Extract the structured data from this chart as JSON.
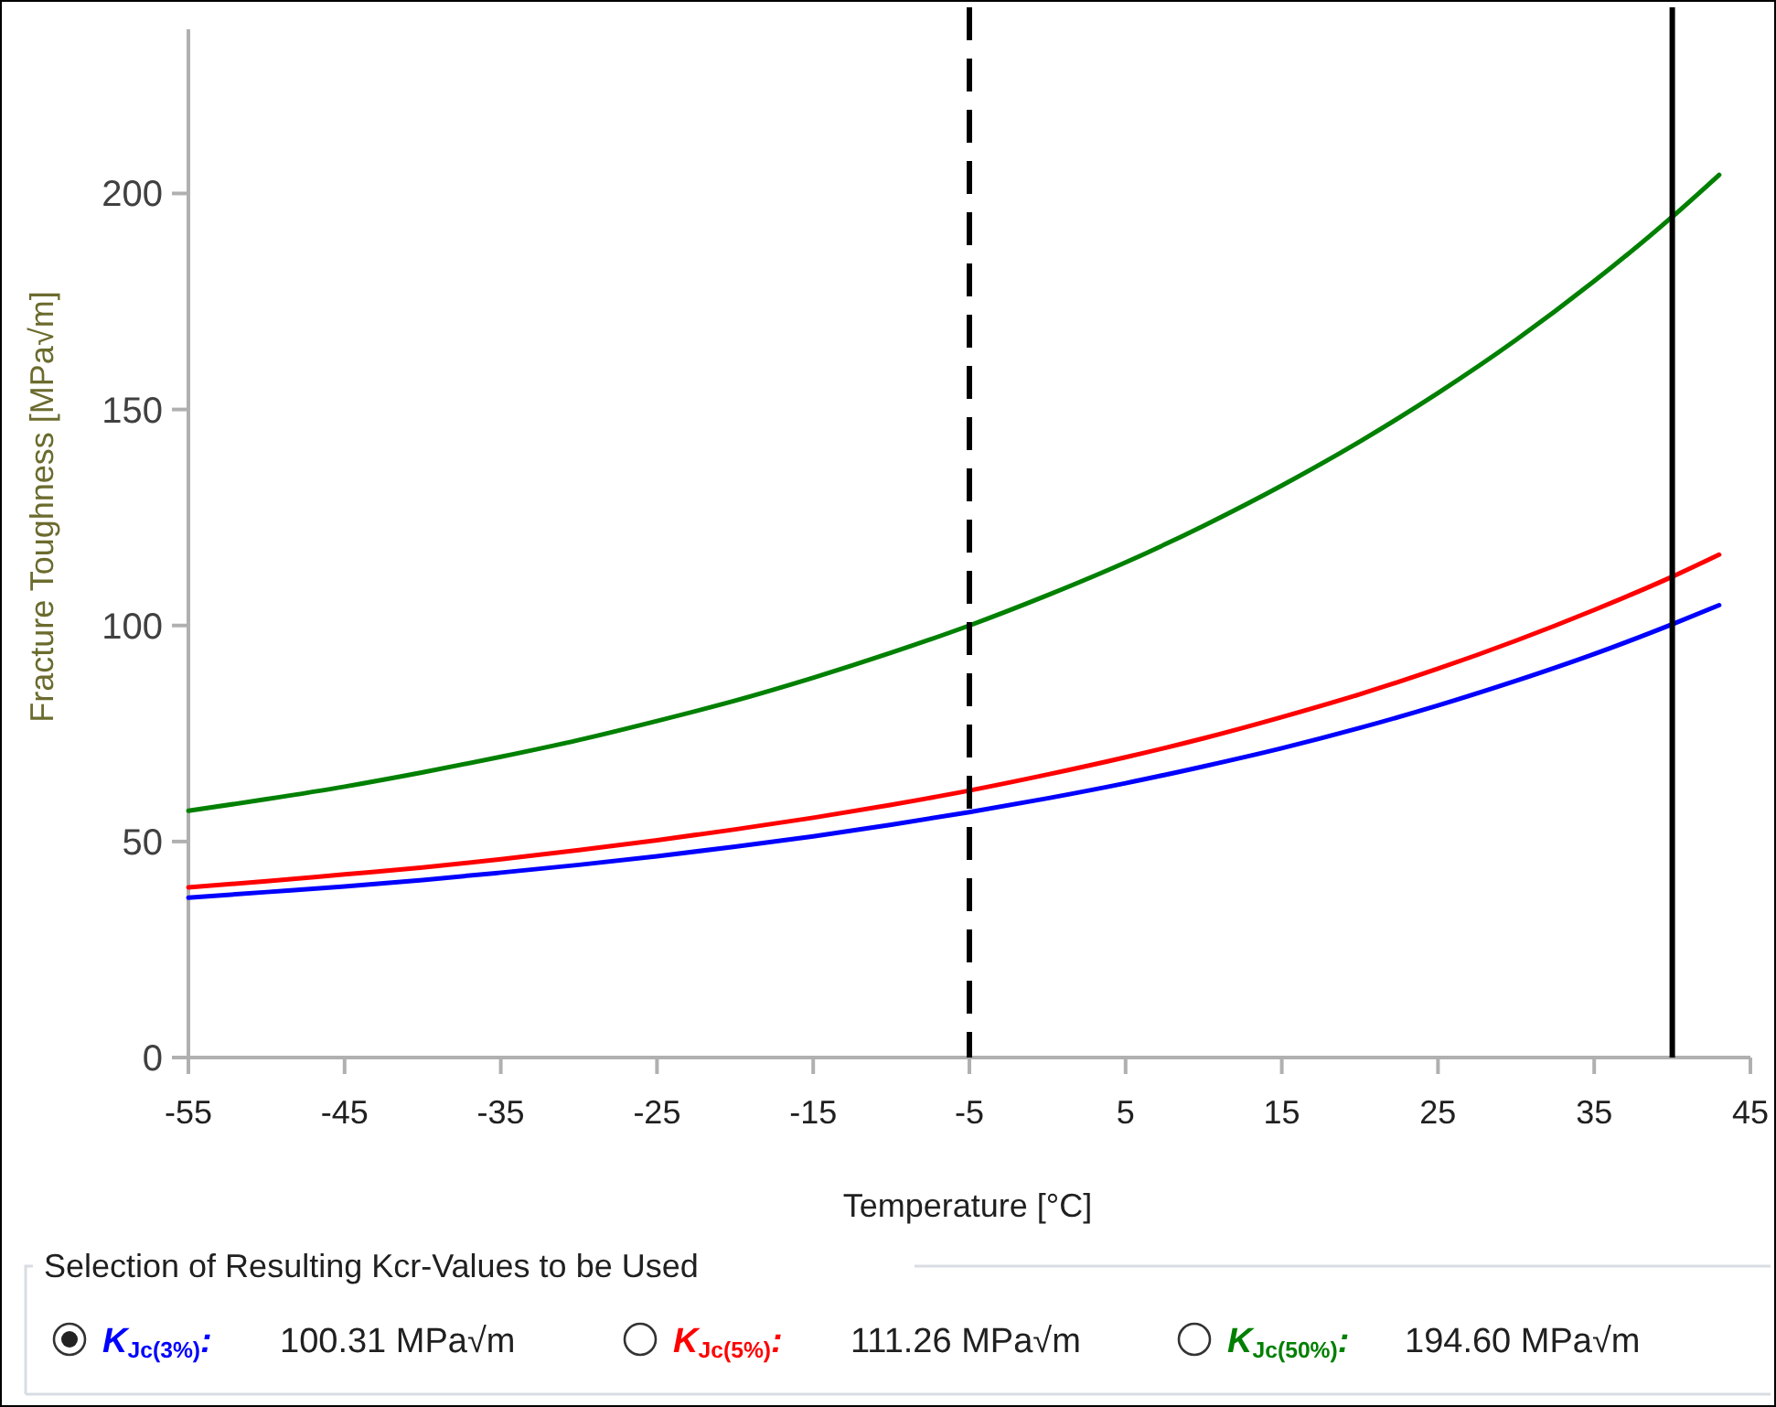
{
  "chart_data": {
    "type": "line",
    "xlabel": "Temperature [°C]",
    "ylabel": "Fracture Toughness [MPa√m]",
    "legend_title": "Selection of Resulting Kcr-Values to be Used",
    "legend": "bottom",
    "grid": false,
    "marker": "none",
    "line_style": "solid",
    "x": [
      -55,
      -50,
      -45,
      -40,
      -35,
      -30,
      -25,
      -20,
      -15,
      -10,
      -5,
      0,
      5,
      10,
      15,
      20,
      25,
      30,
      35,
      40,
      43
    ],
    "xlim": [
      -55,
      45
    ],
    "xticks": [
      -55,
      -45,
      -35,
      -25,
      -15,
      -5,
      5,
      15,
      25,
      35,
      45
    ],
    "ylim": [
      0,
      238
    ],
    "yticks": [
      0,
      50,
      100,
      150,
      200
    ],
    "series": [
      {
        "name": "K$_{Jc(3%)}$:",
        "color": "#0000ff",
        "values": [
          37.0,
          38.3,
          39.6,
          41.1,
          42.8,
          44.6,
          46.6,
          48.8,
          51.2,
          53.9,
          56.8,
          60.0,
          63.5,
          67.4,
          71.6,
          76.3,
          81.5,
          87.2,
          93.4,
          100.3,
          104.7
        ]
      },
      {
        "name": "K$_{Jc(5%)}$:",
        "color": "#ff0000",
        "values": [
          39.4,
          40.8,
          42.4,
          44.0,
          45.9,
          48.0,
          50.3,
          52.8,
          55.5,
          58.5,
          61.8,
          65.5,
          69.5,
          73.9,
          78.8,
          84.1,
          90.0,
          96.5,
          103.6,
          111.3,
          116.4
        ]
      },
      {
        "name": "K$_{Jc(50%)}$:",
        "color": "#008000",
        "values": [
          57.1,
          59.8,
          62.7,
          66.0,
          69.6,
          73.5,
          77.9,
          82.6,
          87.9,
          93.7,
          100.0,
          107.0,
          114.6,
          123.1,
          132.4,
          142.6,
          153.8,
          166.1,
          179.7,
          194.6,
          204.3
        ]
      }
    ],
    "ref_lines": [
      {
        "axis": "x",
        "value": -5,
        "color": "#000000",
        "line_style": "dashed"
      },
      {
        "axis": "x",
        "value": 40,
        "color": "#000000",
        "line_style": "solid"
      }
    ],
    "annotations": [
      "100.31 MPa√m",
      "111.26 MPa√m",
      "194.60 MPa√m"
    ]
  }
}
